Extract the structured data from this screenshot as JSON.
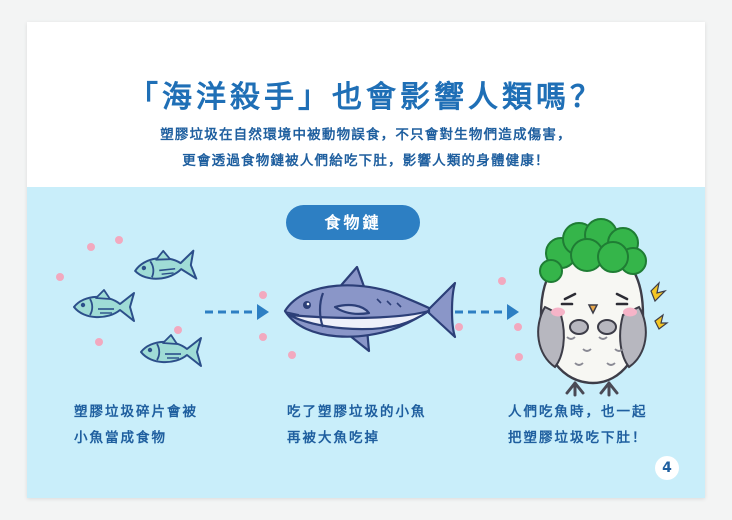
{
  "title": "「海洋殺手」也會影響人類嗎？",
  "subtitle_lines": [
    "塑膠垃圾在自然環境中被動物誤食，不只會對生物們造成傷害，",
    "更會透過食物鏈被人們給吃下肚，影響人類的身體健康！"
  ],
  "food_chain_label": "食物鏈",
  "captions": {
    "step1": [
      "塑膠垃圾碎片會被",
      "小魚當成食物"
    ],
    "step2": [
      "吃了塑膠垃圾的小魚",
      "再被大魚吃掉"
    ],
    "step3": [
      "人們吃魚時，也一起",
      "把塑膠垃圾吃下肚！"
    ]
  },
  "page_number": "4",
  "colors": {
    "title": "#1f6fb6",
    "body_text": "#1f5f9f",
    "panel_bg": "#c9eefa",
    "pill_bg": "#2d7fc3",
    "small_fish": "#9fdcd6",
    "tuna_body": "#8a96c8",
    "tuna_belly": "#eef0fa",
    "arrow": "#2d7fc3",
    "plastic_dots": "#f2a9bf",
    "broccoli_hair": "#35b54a"
  },
  "icons": [
    "small-fish-icon",
    "tuna-icon",
    "dashed-arrow-icon",
    "owl-character-icon",
    "sparkle-icon"
  ]
}
